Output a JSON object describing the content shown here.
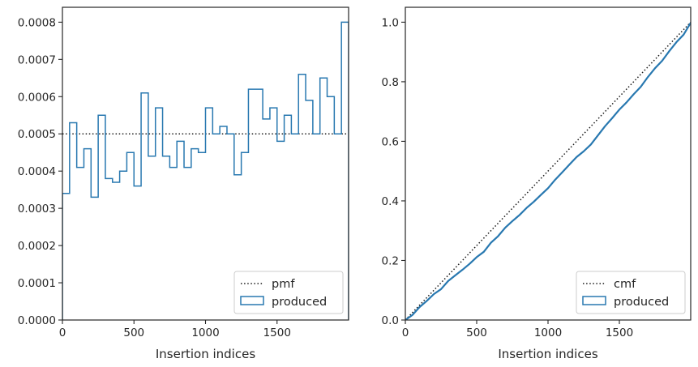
{
  "colors": {
    "series": "#2878b0",
    "reference": "#1a1a1a",
    "axis": "#262626",
    "legend_border": "#cccccc"
  },
  "chart_data": [
    {
      "type": "line",
      "step": true,
      "xlabel": "Insertion indices",
      "ylabel": "",
      "xlim": [
        0,
        2000
      ],
      "ylim": [
        0,
        0.00084
      ],
      "xticks": [
        0,
        500,
        1000,
        1500
      ],
      "xtick_labels": [
        "0",
        "500",
        "1000",
        "1500"
      ],
      "yticks": [
        0,
        0.0001,
        0.0002,
        0.0003,
        0.0004,
        0.0005,
        0.0006,
        0.0007,
        0.0008
      ],
      "ytick_labels": [
        "0.0000",
        "0.0001",
        "0.0002",
        "0.0003",
        "0.0004",
        "0.0005",
        "0.0006",
        "0.0007",
        "0.0008"
      ],
      "legend": {
        "placement": "lower-right",
        "entries": [
          "pmf",
          "produced"
        ]
      },
      "reference": {
        "name": "pmf",
        "style": "dotted",
        "y": 0.0005
      },
      "series": [
        {
          "name": "produced",
          "bin_width": 50,
          "values": [
            0.00034,
            0.00053,
            0.00041,
            0.00046,
            0.00033,
            0.00055,
            0.00038,
            0.00037,
            0.0004,
            0.00045,
            0.00036,
            0.00061,
            0.00044,
            0.00057,
            0.00044,
            0.00041,
            0.00048,
            0.00041,
            0.00046,
            0.00045,
            0.00057,
            0.0005,
            0.00052,
            0.0005,
            0.00039,
            0.00045,
            0.00062,
            0.00062,
            0.00054,
            0.00057,
            0.00048,
            0.00055,
            0.0005,
            0.00066,
            0.00059,
            0.0005,
            0.00065,
            0.0006,
            0.0005,
            0.0008
          ]
        }
      ]
    },
    {
      "type": "line",
      "xlabel": "Insertion indices",
      "ylabel": "",
      "xlim": [
        0,
        2000
      ],
      "ylim": [
        0,
        1.05
      ],
      "xticks": [
        0,
        500,
        1000,
        1500
      ],
      "xtick_labels": [
        "0",
        "500",
        "1000",
        "1500"
      ],
      "yticks": [
        0,
        0.2,
        0.4,
        0.6,
        0.8,
        1.0
      ],
      "ytick_labels": [
        "0.0",
        "0.2",
        "0.4",
        "0.6",
        "0.8",
        "1.0"
      ],
      "legend": {
        "placement": "lower-right",
        "entries": [
          "cmf",
          "produced"
        ]
      },
      "reference": {
        "name": "cmf",
        "style": "dotted",
        "x": [
          0,
          2000
        ],
        "y": [
          0,
          1.0
        ]
      },
      "series": [
        {
          "name": "produced",
          "x": [
            0,
            50,
            100,
            150,
            200,
            250,
            300,
            350,
            400,
            450,
            500,
            550,
            600,
            650,
            700,
            750,
            800,
            850,
            900,
            950,
            1000,
            1050,
            1100,
            1150,
            1200,
            1250,
            1300,
            1350,
            1400,
            1450,
            1500,
            1550,
            1600,
            1650,
            1700,
            1750,
            1800,
            1850,
            1900,
            1950,
            2000
          ],
          "y": [
            0,
            0.017,
            0.0435,
            0.064,
            0.087,
            0.1035,
            0.131,
            0.15,
            0.1685,
            0.1885,
            0.211,
            0.229,
            0.2595,
            0.2815,
            0.31,
            0.332,
            0.3525,
            0.3765,
            0.397,
            0.42,
            0.4425,
            0.471,
            0.496,
            0.522,
            0.547,
            0.5665,
            0.589,
            0.62,
            0.651,
            0.678,
            0.7065,
            0.7305,
            0.758,
            0.783,
            0.816,
            0.8455,
            0.8705,
            0.903,
            0.933,
            0.958,
            0.998
          ]
        }
      ]
    }
  ]
}
